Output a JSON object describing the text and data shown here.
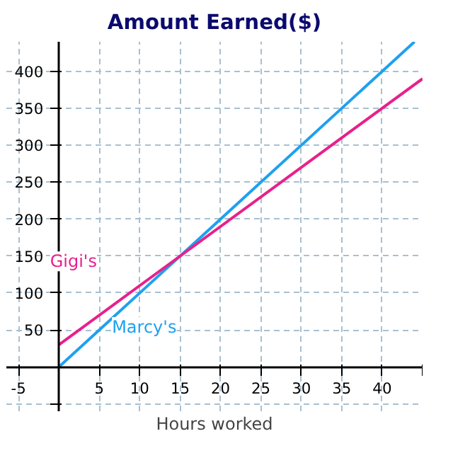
{
  "chart_data": {
    "type": "line",
    "title": "Amount Earned($)",
    "xlabel": "Hours worked",
    "x": [
      0,
      45
    ],
    "series": [
      {
        "name": "Marcy's",
        "color": "#1ea0f0",
        "x": [
          0,
          44
        ],
        "values": [
          0,
          440
        ]
      },
      {
        "name": "Gigi's",
        "color": "#e8208c",
        "values": [
          30,
          390
        ]
      }
    ],
    "xlim": [
      -6.5,
      45
    ],
    "ylim": [
      -60,
      440
    ],
    "xticks": [
      -5,
      5,
      10,
      15,
      20,
      25,
      30,
      35,
      40,
      {
        "value": 45,
        "label": null
      }
    ],
    "yticks": [
      {
        "value": -50,
        "label": null
      },
      50,
      100,
      150,
      200,
      250,
      300,
      350,
      400
    ],
    "grid": true,
    "marker": "none",
    "line_style": "solid"
  }
}
